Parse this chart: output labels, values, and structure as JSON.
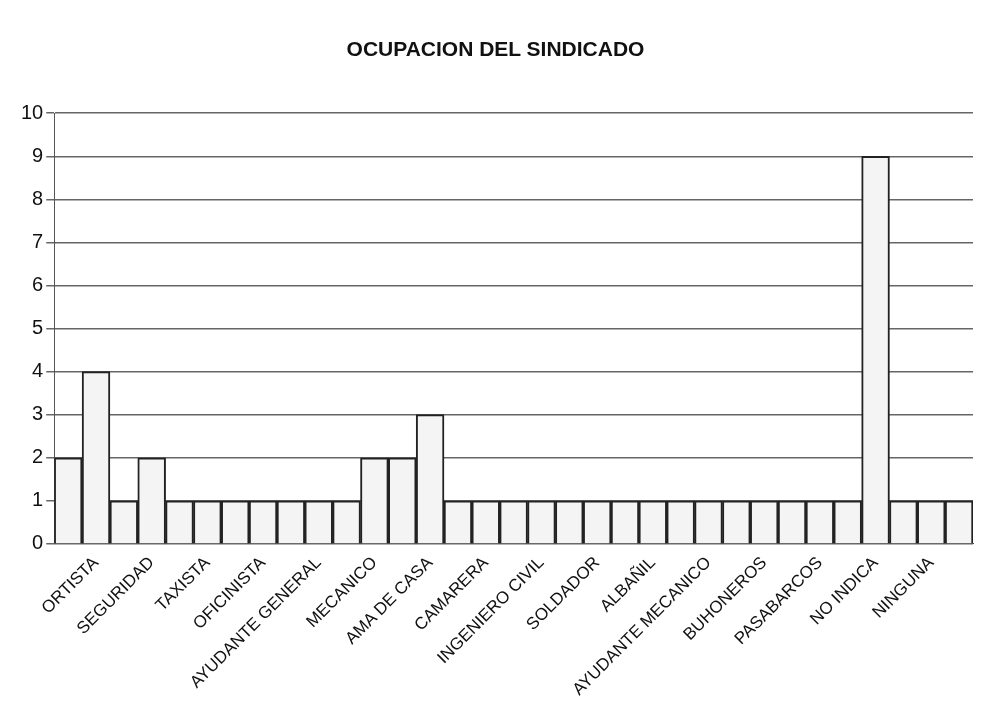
{
  "chart_data": {
    "type": "bar",
    "title": "OCUPACION DEL SINDICADO",
    "categories": [
      null,
      "ORTISTA",
      null,
      "SEGURIDAD",
      null,
      "TAXISTA",
      null,
      "OFICINISTA",
      null,
      "AYUDANTE GENERAL",
      null,
      "MECANICO",
      null,
      "AMA DE CASA",
      null,
      "CAMARERA",
      null,
      "INGENIERO CIVIL",
      null,
      "SOLDADOR",
      null,
      "ALBAÑIL",
      null,
      "AYUDANTE MECANICO",
      null,
      "BUHONEROS",
      null,
      "PASABARCOS",
      null,
      "NO INDICA",
      null,
      "NINGUNA",
      null
    ],
    "values": [
      2,
      4,
      1,
      2,
      1,
      1,
      1,
      1,
      1,
      1,
      1,
      2,
      2,
      3,
      1,
      1,
      1,
      1,
      1,
      1,
      1,
      1,
      1,
      1,
      1,
      1,
      1,
      1,
      1,
      9,
      1,
      1,
      1
    ],
    "color": "#f4f4f4",
    "ylim": [
      0,
      10
    ],
    "yticks": [
      0,
      1,
      2,
      3,
      4,
      5,
      6,
      7,
      8,
      9,
      10
    ],
    "grid": "y"
  }
}
